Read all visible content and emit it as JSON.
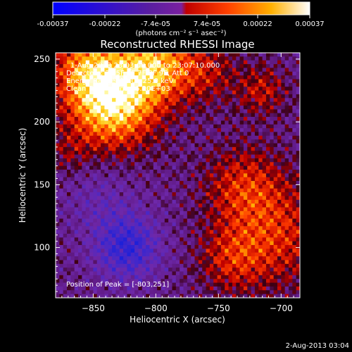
{
  "colorbar": {
    "tick_labels": [
      "-0.00037",
      "-0.00022",
      "-7.4e-05",
      "7.4e-05",
      "0.00022",
      "0.00037"
    ],
    "tick_values": [
      -0.00037,
      -0.00022,
      -7.4e-05,
      7.4e-05,
      0.00022,
      0.00037
    ],
    "range": [
      -0.00037,
      0.00037
    ],
    "units_label": "(photons cm⁻² s⁻¹ asec⁻²)"
  },
  "header": {
    "title": "Reconstructed RHESSI Image",
    "info_lines": [
      "1-Aug-2013 23:03:00.000 to 23:07:10.000",
      "Detectors: 3F 5F 6F 7F 8F 9F, Att 0",
      "Energy Range: 12.0 - 25.0 keV",
      "Clean    Total counts: 6.20E+03"
    ],
    "peak_label": "Position of Peak = [-803,251]"
  },
  "footer": {
    "timestamp": "2-Aug-2013 03:04"
  },
  "chart_data": {
    "type": "heatmap",
    "title": "Reconstructed RHESSI Image",
    "xlabel": "Heliocentric X (arcsec)",
    "ylabel": "Heliocentric Y (arcsec)",
    "xlim": [
      -880,
      -685
    ],
    "ylim": [
      60,
      255
    ],
    "x_ticks": [
      -850,
      -800,
      -750,
      -700
    ],
    "x_tick_labels": [
      "−850",
      "−800",
      "−750",
      "−700"
    ],
    "y_ticks": [
      100,
      150,
      200,
      250
    ],
    "y_tick_labels": [
      "100",
      "150",
      "200",
      "250"
    ],
    "colorscale": [
      "#0000ff",
      "#5a1ea0",
      "#7a20a0",
      "#ff0000",
      "#ff7000",
      "#ffd000",
      "#ffffff"
    ],
    "peak_position": [
      -803,
      251
    ],
    "z_range": [
      -0.00037,
      0.00037
    ],
    "grid": false
  }
}
